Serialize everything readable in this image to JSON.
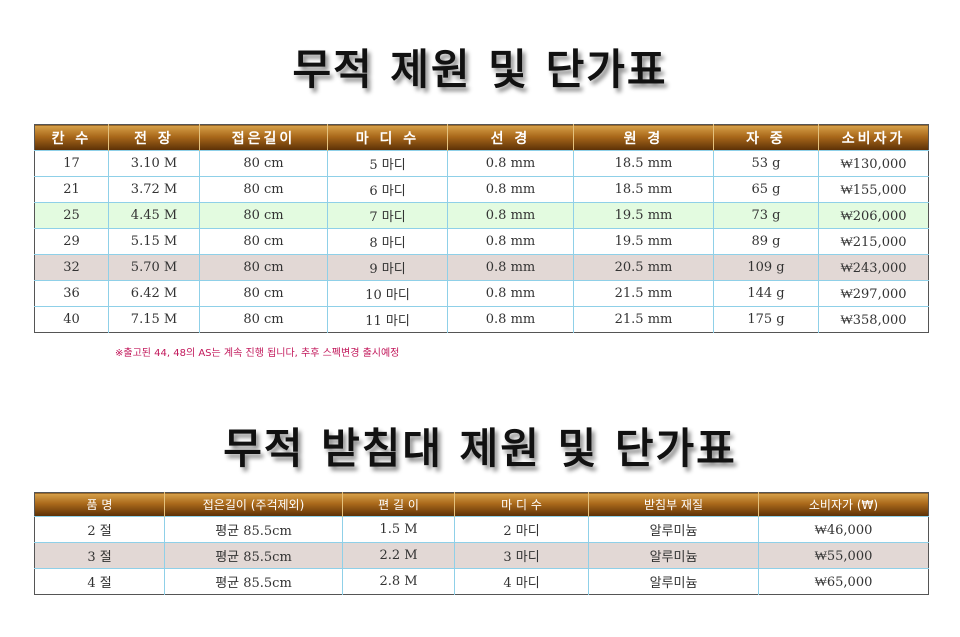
{
  "title1": "무적 제원 및 단가표",
  "spec": {
    "headers": [
      "칸 수",
      "전 장",
      "접은길이",
      "마 디 수",
      "선 경",
      "원 경",
      "자 중",
      "소비자가"
    ],
    "rows": [
      [
        "17",
        "3.10 M",
        "80 cm",
        "5 마디",
        "0.8 mm",
        "18.5 mm",
        "53 g",
        "₩130,000"
      ],
      [
        "21",
        "3.72 M",
        "80 cm",
        "6 마디",
        "0.8 mm",
        "18.5 mm",
        "65 g",
        "₩155,000"
      ],
      [
        "25",
        "4.45 M",
        "80 cm",
        "7 마디",
        "0.8 mm",
        "19.5 mm",
        "73 g",
        "₩206,000"
      ],
      [
        "29",
        "5.15 M",
        "80 cm",
        "8 마디",
        "0.8 mm",
        "19.5 mm",
        "89 g",
        "₩215,000"
      ],
      [
        "32",
        "5.70 M",
        "80 cm",
        "9 마디",
        "0.8 mm",
        "20.5 mm",
        "109 g",
        "₩243,000"
      ],
      [
        "36",
        "6.42 M",
        "80 cm",
        "10 마디",
        "0.8 mm",
        "21.5 mm",
        "144 g",
        "₩297,000"
      ],
      [
        "40",
        "7.15 M",
        "80 cm",
        "11 마디",
        "0.8 mm",
        "21.5 mm",
        "175 g",
        "₩358,000"
      ]
    ]
  },
  "note": "※출고된 44, 48의 AS는 계속 진행 됩니다,  추후 스펙변경 출시예정",
  "title2": "무적 받침대 제원 및 단가표",
  "stand": {
    "headers": [
      "품   명",
      "접은길이 (주걱제외)",
      "편 길 이",
      "마 디 수",
      "받침부 재질",
      "소비자가 (₩)"
    ],
    "rows": [
      [
        "2 절",
        "평균 85.5cm",
        "1.5 M",
        "2 마디",
        "알루미늄",
        "₩46,000"
      ],
      [
        "3 절",
        "평균 85.5cm",
        "2.2 M",
        "3 마디",
        "알루미늄",
        "₩55,000"
      ],
      [
        "4 절",
        "평균 85.5cm",
        "2.8 M",
        "4 마디",
        "알루미늄",
        "₩65,000"
      ]
    ]
  },
  "colors": {
    "header_gradient_top": "#d8a24a",
    "header_gradient_bottom": "#5a2f06",
    "highlight_green": "#e3fbe0",
    "highlight_gray": "#e2d8d5",
    "note_color": "#c2185b"
  }
}
